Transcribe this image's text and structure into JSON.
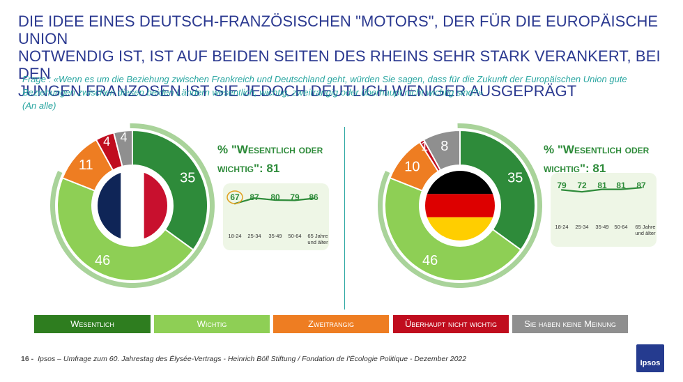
{
  "title_lines": [
    "DIE IDEE EINES DEUTSCH-FRANZÖSISCHEN \"MOTORS\", DER FÜR DIE EUROPÄISCHE UNION",
    "NOTWENDIG IST, IST AUF BEIDEN SEITEN DES RHEINS SEHR STARK VERANKERT, BEI DEN",
    "JUNGEN FRANZOSEN IST SIE JEDOCH DEUTLICH WENIGER AUSGEPRÄGT"
  ],
  "question_lines": [
    "Frage : «Wenn es um die Beziehung zwischen Frankreich und Deutschland geht, würden Sie sagen, dass für die Zukunft der Europäischen Union gute",
    "Beziehungen zwischen diesen beiden Ländern wesentlich, wichtig, zweitrangig oder überhaupt nicht wichtig sind?»",
    "(An alle)"
  ],
  "colors": {
    "wesentlich": "#2e8b3a",
    "wichtig": "#8ecf55",
    "zweitrangig": "#ee7d22",
    "nicht_wichtig": "#c00d1e",
    "keine_meinung": "#8f8f8f"
  },
  "chart_data": [
    {
      "type": "pie",
      "country": "France",
      "flag-icon": "france-flag-icon",
      "categories": [
        "Wesentlich",
        "Wichtig",
        "Zweitrangig",
        "Überhaupt nicht wichtig",
        "Sie haben keine Meinung"
      ],
      "values": [
        35,
        46,
        11,
        4,
        4
      ],
      "kpi_line1": "% \"Wesentlich oder",
      "kpi_line2": "wichtig\": 81",
      "age_groups": [
        "18-24",
        "25-34",
        "35-49",
        "50-64",
        "65 Jahre und älter"
      ],
      "age_values": [
        67,
        87,
        80,
        79,
        86
      ],
      "highlight_index": 0
    },
    {
      "type": "pie",
      "country": "Germany",
      "flag-icon": "germany-flag-icon",
      "categories": [
        "Wesentlich",
        "Wichtig",
        "Zweitrangig",
        "Überhaupt nicht wichtig",
        "Sie haben keine Meinung"
      ],
      "values": [
        35,
        46,
        10,
        1,
        8
      ],
      "kpi_line1": "% \"Wesentlich oder",
      "kpi_line2": "wichtig\": 81",
      "age_groups": [
        "18-24",
        "25-34",
        "35-49",
        "50-64",
        "65 Jahre und älter"
      ],
      "age_values": [
        79,
        72,
        81,
        81,
        87
      ],
      "highlight_index": -1
    }
  ],
  "legend": [
    {
      "label": "Wesentlich",
      "color": "#2e7d1f"
    },
    {
      "label": "Wichtig",
      "color": "#8ecf55"
    },
    {
      "label": "Zweitrangig",
      "color": "#ee7d22"
    },
    {
      "label": "Überhaupt nicht wichtig",
      "color": "#c00d1e"
    },
    {
      "label": "Sie haben keine Meinung",
      "color": "#8f8f8f"
    }
  ],
  "footer": {
    "page": "16 -",
    "source": "Ipsos – Umfrage zum 60. Jahrestag des Élysée-Vertrags - Heinrich Böll Stiftung / Fondation de l'Écologie Politique - Dezember 2022"
  },
  "logo_text": "Ipsos"
}
